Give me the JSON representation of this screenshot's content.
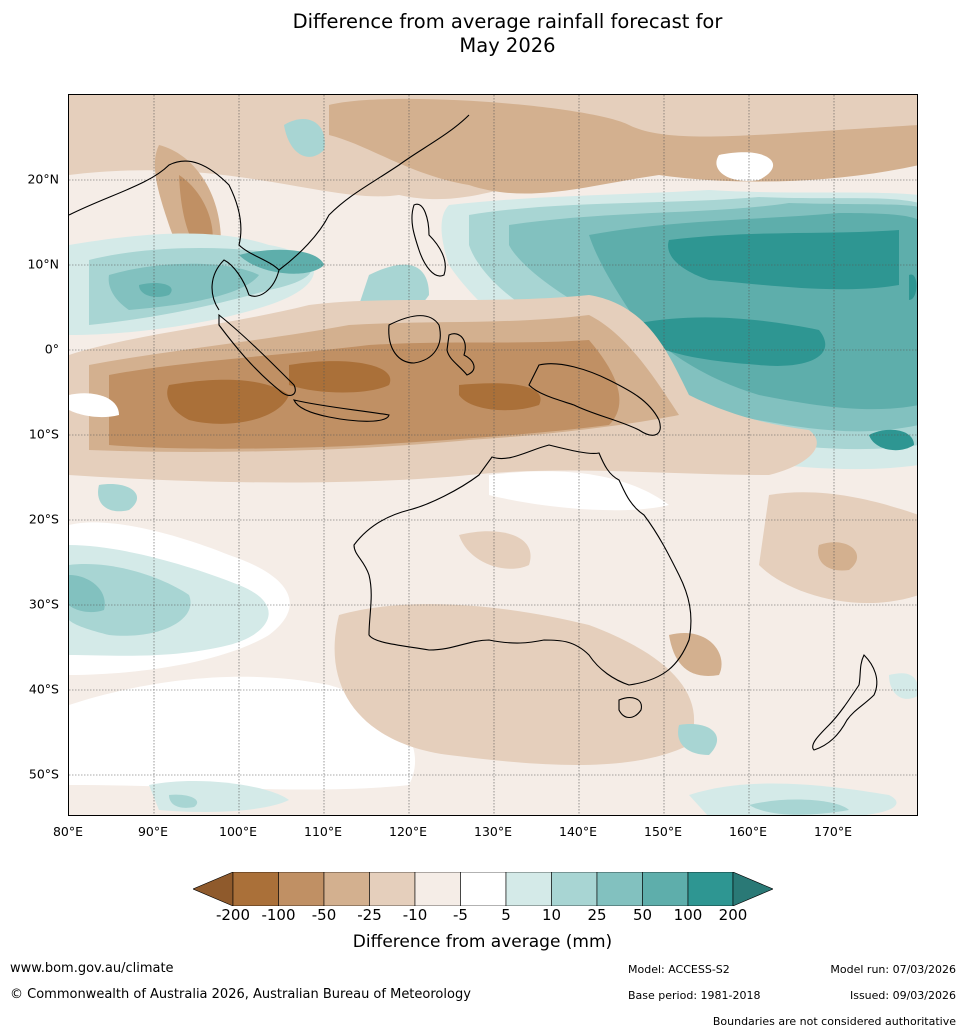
{
  "header": {
    "title_line1": "Difference from average rainfall forecast for",
    "title_line2": "May 2026"
  },
  "map": {
    "lat_labels": [
      "20°N",
      "10°N",
      "0°",
      "10°S",
      "20°S",
      "30°S",
      "40°S",
      "50°S"
    ],
    "lon_labels": [
      "80°E",
      "90°E",
      "100°E",
      "110°E",
      "120°E",
      "130°E",
      "140°E",
      "150°E",
      "160°E",
      "170°E"
    ],
    "grid_lines": true
  },
  "colorbar": {
    "ticks": [
      "-200",
      "-100",
      "-50",
      "-25",
      "-10",
      "-5",
      "5",
      "10",
      "25",
      "50",
      "100",
      "200"
    ],
    "colors": [
      "#8f5a2c",
      "#aa7039",
      "#c09064",
      "#d3b08f",
      "#e5cfbc",
      "#f5ede7",
      "#ffffff",
      "#d4eae8",
      "#a8d5d3",
      "#82c1bf",
      "#5eaeab",
      "#2e9692",
      "#2a7976"
    ],
    "label": "Difference from average (mm)"
  },
  "footer": {
    "website": "www.bom.gov.au/climate",
    "copyright": "© Commonwealth of Australia 2026, Australian Bureau of Meteorology",
    "model": "Model: ACCESS-S2",
    "base_period": "Base period: 1981-2018",
    "model_run": "Model run: 07/03/2026",
    "issued": "Issued: 09/03/2026",
    "disclaimer": "Boundaries are not considered authoritative"
  }
}
